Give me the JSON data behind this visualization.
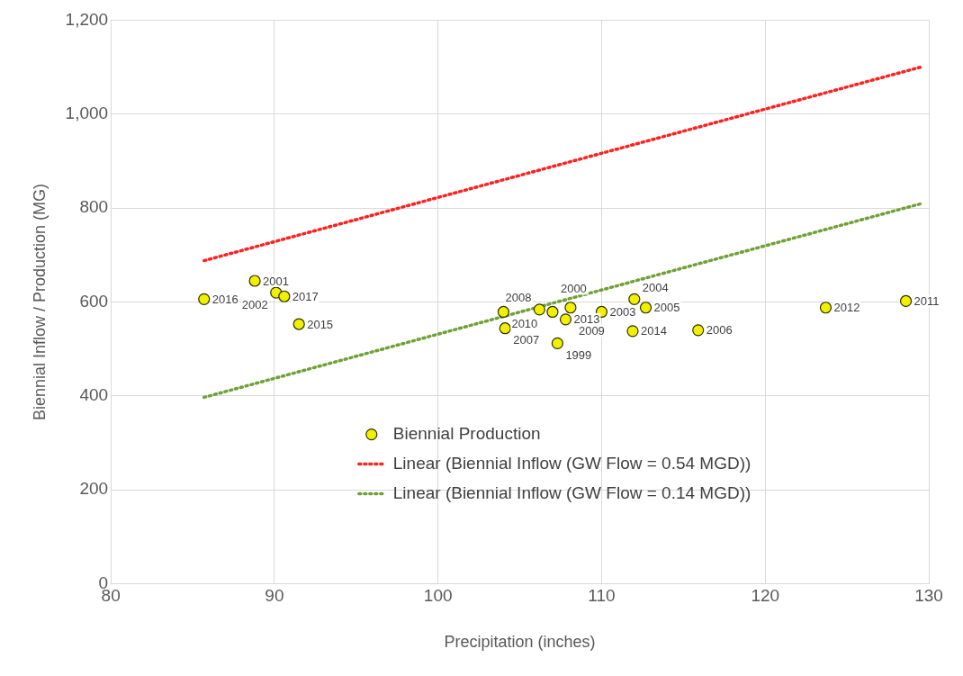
{
  "chart_data": {
    "type": "scatter",
    "xlabel": "Precipitation (inches)",
    "ylabel": "Biennial Inflow / Production (MG)",
    "xlim": [
      80,
      130
    ],
    "xticks": [
      80,
      90,
      100,
      110,
      120,
      130
    ],
    "ylim": [
      0,
      1200
    ],
    "yticks": [
      0,
      200,
      400,
      600,
      800,
      {
        "value": 1000,
        "label": "1,000"
      },
      {
        "value": 1200,
        "label": "1,200"
      }
    ],
    "grid": true,
    "legend": "bottom",
    "series": [
      {
        "name": "Biennial Production",
        "marker": "circle",
        "color": "#f0f000",
        "x": [
          85.7,
          88.8,
          90.1,
          90.6,
          91.5,
          104.0,
          104.1,
          106.2,
          107.0,
          108.1,
          107.8,
          110.0,
          112.0,
          112.7,
          111.9,
          107.3,
          115.9,
          123.7,
          128.6
        ],
        "values": [
          606,
          645,
          620,
          612,
          553,
          579,
          544,
          584,
          579,
          588,
          563,
          579,
          606,
          588,
          538,
          512,
          540,
          588,
          602
        ]
      },
      {
        "name": "Linear (Biennial Inflow (GW Flow = 0.54 MGD))",
        "type": "line",
        "marker": "none",
        "line_style": "dotted",
        "color": "#ff2020",
        "x": [
          85.7,
          129.6
        ],
        "values": [
          688,
          1101
        ]
      },
      {
        "name": "Linear (Biennial Inflow (GW Flow = 0.14 MGD))",
        "type": "line",
        "marker": "none",
        "line_style": "dotted",
        "color": "#70a038",
        "x": [
          85.7,
          129.6
        ],
        "values": [
          397,
          810
        ]
      }
    ],
    "annotations": [
      {
        "text": "2016",
        "x": 85.7,
        "y": 606
      },
      {
        "text": "2001",
        "x": 88.8,
        "y": 645
      },
      {
        "text": "2002",
        "x": 90.1,
        "y": 620
      },
      {
        "text": "2017",
        "x": 90.6,
        "y": 612
      },
      {
        "text": "2015",
        "x": 91.5,
        "y": 553
      },
      {
        "text": "2010",
        "x": 104.0,
        "y": 579
      },
      {
        "text": "2007",
        "x": 104.1,
        "y": 544
      },
      {
        "text": "2008",
        "x": 106.2,
        "y": 584
      },
      {
        "text": "2000",
        "x": 107.0,
        "y": 579
      },
      {
        "text": "2009",
        "x": 108.1,
        "y": 588
      },
      {
        "text": "2013",
        "x": 107.8,
        "y": 563
      },
      {
        "text": "2003",
        "x": 110.0,
        "y": 579
      },
      {
        "text": "2004",
        "x": 112.0,
        "y": 606
      },
      {
        "text": "2005",
        "x": 112.7,
        "y": 588
      },
      {
        "text": "2014",
        "x": 111.9,
        "y": 538
      },
      {
        "text": "1999",
        "x": 107.3,
        "y": 512
      },
      {
        "text": "2006",
        "x": 115.9,
        "y": 540
      },
      {
        "text": "2012",
        "x": 123.7,
        "y": 588
      },
      {
        "text": "2011",
        "x": 128.6,
        "y": 602
      }
    ]
  }
}
